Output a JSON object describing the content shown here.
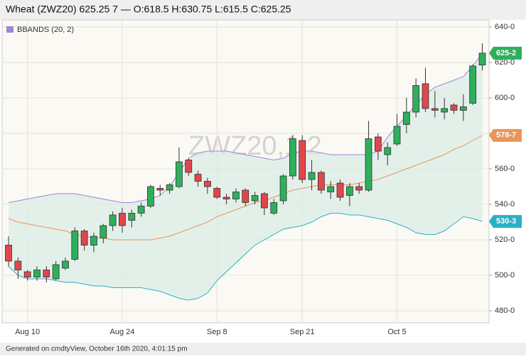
{
  "chart_data": {
    "type": "candlestick",
    "title": "Wheat (ZWZ20) 625.25 7 — O:618.5 H:630.75 L:615.5 C:625.25",
    "watermark": "ZWZ20,1,2",
    "footer": "Generated on cmdtyView, October 16th 2020, 4:01:15 pm",
    "categories": [
      null,
      null,
      "Aug 10",
      null,
      null,
      null,
      null,
      null,
      null,
      null,
      null,
      null,
      "Aug 24",
      null,
      null,
      null,
      null,
      null,
      null,
      null,
      null,
      null,
      "Sep 8",
      null,
      null,
      null,
      null,
      null,
      null,
      null,
      null,
      "Sep 21",
      null,
      null,
      null,
      null,
      null,
      null,
      null,
      null,
      null,
      "Oct 5",
      null,
      null,
      null,
      null,
      null,
      null,
      null,
      null,
      null
    ],
    "open": [
      517,
      508,
      502,
      499,
      503,
      498,
      504,
      509,
      525,
      517,
      521,
      528,
      535,
      531,
      535,
      539,
      549,
      548,
      550,
      565,
      557,
      553,
      549,
      544,
      543,
      548,
      542,
      546,
      535,
      542,
      556,
      576,
      554,
      558,
      547,
      552,
      545,
      550,
      548,
      578,
      568,
      574,
      585,
      592,
      608,
      594,
      592,
      596,
      593,
      597,
      618.5
    ],
    "high": [
      522,
      510,
      503,
      505,
      505,
      508,
      510,
      527,
      526,
      524,
      529,
      536,
      538,
      537,
      541,
      551,
      551,
      552,
      572,
      566,
      559,
      555,
      550,
      546,
      549,
      549,
      547,
      547,
      543,
      557,
      579,
      579,
      565,
      559,
      553,
      554,
      552,
      552,
      587,
      580,
      575,
      591,
      600,
      611,
      617,
      604,
      600,
      597,
      602,
      619,
      630.75
    ],
    "low": [
      505,
      498,
      497,
      497,
      496,
      497,
      503,
      508,
      514,
      513,
      518,
      525,
      524,
      527,
      533,
      538,
      545,
      546,
      549,
      556,
      550,
      546,
      543,
      540,
      541,
      539,
      540,
      534,
      534,
      540,
      554,
      552,
      548,
      546,
      543,
      542,
      539,
      546,
      547,
      565,
      562,
      573,
      580,
      589,
      592,
      589,
      588,
      591,
      587,
      596,
      615.5
    ],
    "close": [
      508,
      503,
      499,
      503,
      499,
      506,
      508,
      525,
      517,
      522,
      528,
      534,
      528,
      535,
      539,
      550,
      548,
      551,
      564,
      558,
      553,
      550,
      544,
      543,
      547,
      541,
      545,
      538,
      541,
      556,
      577,
      554,
      558,
      548,
      550,
      544,
      550,
      548,
      577,
      570,
      572,
      584,
      592,
      607,
      594,
      593,
      594,
      593,
      595,
      618,
      625.25
    ],
    "up_color": "#2eaf5c",
    "down_color": "#e0474c",
    "bbands": {
      "name": "BBANDS (20, 2)",
      "color": "#9c85d6",
      "middle_color": "#e8955a",
      "lower_color": "#2ab0c6",
      "fill": "#d9ece6",
      "upper": [
        541,
        542,
        543,
        544,
        545,
        546,
        546,
        546,
        545,
        544,
        543,
        542,
        541,
        541,
        542,
        543,
        545,
        550,
        558,
        566,
        569,
        570,
        570,
        570,
        569,
        568,
        567,
        566,
        565,
        566,
        569,
        570,
        570,
        569,
        568,
        568,
        568,
        568,
        568,
        570,
        578,
        584,
        590,
        596,
        602,
        606,
        608,
        610,
        612,
        618,
        625.25
      ],
      "middle": [
        532,
        530,
        529,
        528,
        527,
        526,
        525,
        523,
        522,
        521,
        521,
        520,
        520,
        520,
        520,
        520,
        521,
        522,
        524,
        526,
        528,
        530,
        533,
        535,
        537,
        539,
        541,
        542,
        544,
        546,
        548,
        549,
        550,
        551,
        551,
        551,
        551,
        552,
        553,
        554,
        556,
        558,
        560,
        562,
        564,
        566,
        568,
        571,
        573,
        576,
        578.875
      ],
      "lower": [
        505,
        500,
        498,
        498,
        498,
        497,
        496,
        496,
        495,
        494,
        494,
        493,
        493,
        493,
        493,
        492,
        491,
        489,
        487,
        486,
        487,
        490,
        497,
        502,
        507,
        512,
        517,
        520,
        523,
        526,
        527,
        528,
        530,
        533,
        535,
        535,
        534,
        534,
        533,
        532,
        531,
        529,
        527,
        524,
        523,
        523,
        525,
        529,
        533,
        532,
        530.375
      ]
    },
    "price_tags": [
      {
        "value": 625.25,
        "label": "625-2",
        "color": "#2eaf5c"
      },
      {
        "value": 578.875,
        "label": "578-7",
        "color": "#e8955a"
      },
      {
        "value": 530.375,
        "label": "530-3",
        "color": "#2ab0c6"
      }
    ],
    "ylim": [
      473.2,
      644
    ],
    "yticks": [
      {
        "value": 480,
        "label": "480-0"
      },
      {
        "value": 500,
        "label": "500-0"
      },
      {
        "value": 520,
        "label": "520-0"
      },
      {
        "value": 540,
        "label": "540-0"
      },
      {
        "value": 560,
        "label": "560-0"
      },
      {
        "value": 580,
        "label": "580-0"
      },
      {
        "value": 600,
        "label": "600-0"
      },
      {
        "value": 620,
        "label": "620-0"
      },
      {
        "value": 640,
        "label": "640-0"
      }
    ],
    "grid": true
  }
}
